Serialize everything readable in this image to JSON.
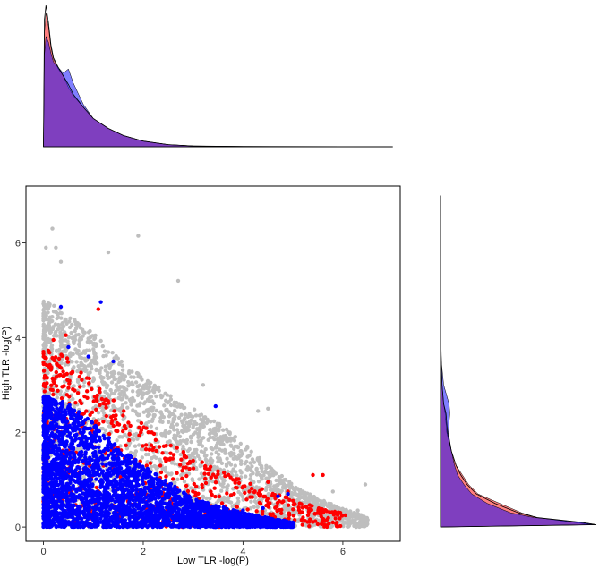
{
  "chart_data": [
    {
      "type": "scatter",
      "role": "main",
      "xlabel": "Low TLR -log(P)",
      "ylabel": "High TLR -log(P)",
      "xlim": [
        -0.35,
        7.15
      ],
      "ylim": [
        -0.3,
        7.2
      ],
      "x_ticks": [
        0,
        2,
        4,
        6
      ],
      "y_ticks": [
        0,
        2,
        4,
        6
      ],
      "x_tick_labels": [
        "0",
        "2",
        "4",
        "6"
      ],
      "y_tick_labels": [
        "0",
        "2",
        "4",
        "6"
      ],
      "grid": false,
      "series": [
        {
          "color": "#bebebe",
          "envelope": [
            [
              0,
              4.8
            ],
            [
              0.5,
              4.5
            ],
            [
              1,
              4.1
            ],
            [
              1.5,
              3.6
            ],
            [
              2,
              3.2
            ],
            [
              2.5,
              2.8
            ],
            [
              3,
              2.5
            ],
            [
              3.5,
              2.2
            ],
            [
              4,
              1.8
            ],
            [
              4.5,
              1.3
            ],
            [
              5,
              0.9
            ],
            [
              5.5,
              0.6
            ],
            [
              6,
              0.4
            ],
            [
              6.5,
              0.2
            ]
          ],
          "outliers": [
            [
              0.18,
              6.3
            ],
            [
              1.9,
              6.15
            ],
            [
              0.25,
              5.9
            ],
            [
              1.3,
              5.8
            ],
            [
              0.05,
              5.9
            ],
            [
              0.35,
              5.6
            ],
            [
              2.7,
              5.2
            ],
            [
              3.2,
              3.0
            ],
            [
              4.5,
              2.5
            ],
            [
              4.3,
              2.45
            ],
            [
              5.8,
              0.75
            ],
            [
              6.45,
              0.9
            ],
            [
              6.3,
              0.35
            ]
          ]
        },
        {
          "color": "#ff0000",
          "envelope": [
            [
              0,
              3.8
            ],
            [
              0.5,
              3.6
            ],
            [
              1,
              3.1
            ],
            [
              1.5,
              2.6
            ],
            [
              2,
              2.2
            ],
            [
              2.5,
              1.8
            ],
            [
              3,
              1.5
            ],
            [
              3.5,
              1.2
            ],
            [
              4,
              1.0
            ],
            [
              4.5,
              0.8
            ],
            [
              5,
              0.6
            ],
            [
              5.5,
              0.4
            ],
            [
              6,
              0.3
            ]
          ],
          "outliers": [
            [
              0.45,
              4.05
            ],
            [
              1.1,
              4.6
            ],
            [
              0.2,
              3.95
            ],
            [
              1.95,
              2.0
            ],
            [
              3.0,
              1.4
            ],
            [
              4.5,
              0.95
            ],
            [
              5.4,
              1.1
            ],
            [
              5.6,
              1.1
            ],
            [
              5.95,
              0.3
            ],
            [
              6.05,
              0.25
            ],
            [
              4.9,
              0.75
            ]
          ]
        },
        {
          "color": "#0000ff",
          "envelope": [
            [
              0,
              2.8
            ],
            [
              0.5,
              2.6
            ],
            [
              1,
              2.2
            ],
            [
              1.5,
              1.7
            ],
            [
              2,
              1.3
            ],
            [
              2.5,
              0.95
            ],
            [
              3,
              0.6
            ],
            [
              3.5,
              0.45
            ],
            [
              4,
              0.3
            ],
            [
              4.5,
              0.2
            ],
            [
              5,
              0.1
            ]
          ],
          "outliers": [
            [
              0.35,
              4.65
            ],
            [
              1.15,
              4.75
            ],
            [
              0.5,
              3.8
            ],
            [
              0.9,
              3.6
            ],
            [
              1.4,
              3.5
            ],
            [
              3.45,
              2.55
            ],
            [
              4.7,
              0.65
            ],
            [
              4.9,
              0.7
            ],
            [
              4.4,
              0.4
            ],
            [
              4.0,
              0.35
            ],
            [
              3.8,
              0.25
            ]
          ]
        }
      ]
    },
    {
      "type": "area",
      "role": "top-marginal-density",
      "variable": "Low TLR -log(P)",
      "xlim": [
        -0.35,
        7.15
      ],
      "series": [
        {
          "color": "#ff0000",
          "x": [
            0,
            0.02,
            0.05,
            0.1,
            0.15,
            0.2,
            0.3,
            0.4,
            0.5,
            0.6,
            0.8,
            1.0,
            1.3,
            1.6,
            2.0,
            2.5,
            3.0,
            4.0,
            5.0,
            7.0
          ],
          "values": [
            0.0,
            0.8,
            0.95,
            0.85,
            0.7,
            0.62,
            0.55,
            0.5,
            0.42,
            0.36,
            0.28,
            0.2,
            0.13,
            0.08,
            0.04,
            0.015,
            0.006,
            0.002,
            0.001,
            0
          ]
        },
        {
          "color": "#0000ff",
          "x": [
            0,
            0.02,
            0.05,
            0.1,
            0.15,
            0.2,
            0.3,
            0.4,
            0.5,
            0.6,
            0.8,
            1.0,
            1.3,
            1.6,
            2.0,
            2.5,
            3.0,
            4.0,
            5.0,
            7.0
          ],
          "values": [
            0.0,
            0.65,
            0.78,
            0.74,
            0.66,
            0.6,
            0.56,
            0.52,
            0.55,
            0.45,
            0.3,
            0.2,
            0.13,
            0.08,
            0.04,
            0.015,
            0.006,
            0.002,
            0.001,
            0
          ]
        },
        {
          "color": "#000000",
          "x": [
            0,
            0.02,
            0.05,
            0.1,
            0.15,
            0.2,
            0.3,
            0.4,
            0.5,
            0.6,
            0.8,
            1.0,
            1.3,
            1.6,
            2.0,
            2.5,
            3.0,
            4.0,
            5.0,
            7.0
          ],
          "values": [
            0.0,
            0.9,
            1.0,
            0.88,
            0.72,
            0.63,
            0.56,
            0.5,
            0.44,
            0.37,
            0.28,
            0.2,
            0.13,
            0.08,
            0.04,
            0.015,
            0.006,
            0.002,
            0.001,
            0
          ]
        }
      ]
    },
    {
      "type": "area",
      "role": "right-marginal-density",
      "variable": "High TLR -log(P)",
      "ylim": [
        -0.3,
        7.2
      ],
      "series": [
        {
          "color": "#ff0000",
          "x": [
            0,
            0.05,
            0.1,
            0.2,
            0.3,
            0.5,
            0.7,
            0.9,
            1.1,
            1.3,
            1.6,
            2.0,
            2.4,
            2.6,
            3.0,
            3.5,
            4.0,
            5.0,
            7.0
          ],
          "values": [
            0.0,
            0.98,
            0.85,
            0.62,
            0.52,
            0.38,
            0.24,
            0.18,
            0.14,
            0.1,
            0.07,
            0.04,
            0.03,
            0.02,
            0.01,
            0.005,
            0.002,
            0.001,
            0
          ]
        },
        {
          "color": "#0000ff",
          "x": [
            0,
            0.05,
            0.1,
            0.2,
            0.3,
            0.5,
            0.7,
            0.9,
            1.1,
            1.3,
            1.6,
            2.0,
            2.4,
            2.6,
            3.0,
            3.5,
            4.0,
            5.0,
            7.0
          ],
          "values": [
            0.0,
            1.0,
            0.9,
            0.6,
            0.45,
            0.3,
            0.2,
            0.15,
            0.11,
            0.09,
            0.07,
            0.05,
            0.06,
            0.055,
            0.02,
            0.005,
            0.002,
            0.001,
            0
          ]
        },
        {
          "color": "#000000",
          "x": [
            0,
            0.05,
            0.1,
            0.2,
            0.3,
            0.5,
            0.7,
            0.9,
            1.1,
            1.3,
            1.6,
            2.0,
            2.4,
            2.6,
            3.0,
            3.5,
            4.0,
            5.0,
            7.0
          ],
          "values": [
            0.0,
            1.0,
            0.9,
            0.62,
            0.5,
            0.35,
            0.23,
            0.17,
            0.13,
            0.1,
            0.07,
            0.045,
            0.035,
            0.02,
            0.01,
            0.005,
            0.002,
            0.001,
            0
          ]
        }
      ]
    }
  ]
}
